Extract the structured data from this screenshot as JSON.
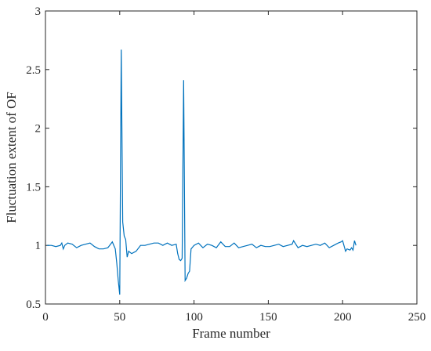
{
  "chart_data": {
    "type": "line",
    "xlabel": "Frame number",
    "ylabel": "Fluctuation extent of OF",
    "x": [
      1,
      4,
      7,
      10,
      11,
      12,
      13,
      15,
      18,
      21,
      24,
      27,
      30,
      33,
      36,
      39,
      42,
      45,
      47,
      48,
      49,
      50,
      51,
      52,
      53,
      54,
      55,
      56,
      58,
      61,
      64,
      67,
      70,
      73,
      76,
      79,
      82,
      85,
      88,
      89,
      90,
      91,
      92,
      93,
      94,
      95,
      96,
      97,
      98,
      100,
      103,
      106,
      109,
      112,
      115,
      118,
      121,
      124,
      127,
      130,
      133,
      136,
      139,
      142,
      145,
      148,
      151,
      154,
      157,
      160,
      163,
      166,
      167,
      170,
      173,
      176,
      179,
      182,
      185,
      188,
      191,
      194,
      197,
      199,
      200,
      202,
      203,
      205,
      206,
      207,
      208,
      209
    ],
    "series": [
      {
        "color": "#0072bd",
        "values": [
          1.0,
          1.0,
          0.99,
          1.0,
          1.02,
          0.97,
          1.0,
          1.02,
          1.01,
          0.98,
          1.0,
          1.01,
          1.02,
          0.99,
          0.97,
          0.97,
          0.98,
          1.03,
          0.97,
          0.85,
          0.7,
          0.58,
          2.67,
          1.2,
          1.08,
          1.05,
          0.9,
          0.95,
          0.93,
          0.95,
          1.0,
          1.0,
          1.01,
          1.02,
          1.02,
          1.0,
          1.02,
          1.0,
          1.01,
          0.93,
          0.88,
          0.87,
          0.89,
          2.41,
          0.7,
          0.72,
          0.76,
          0.78,
          0.97,
          1.0,
          1.02,
          0.98,
          1.01,
          1.0,
          0.98,
          1.03,
          0.99,
          0.99,
          1.02,
          0.98,
          0.99,
          1.0,
          1.01,
          0.98,
          1.0,
          0.99,
          0.99,
          1.0,
          1.01,
          0.99,
          1.0,
          1.01,
          1.04,
          0.98,
          1.0,
          0.99,
          1.0,
          1.01,
          1.0,
          1.02,
          0.98,
          1.0,
          1.02,
          1.03,
          1.04,
          0.95,
          0.97,
          0.96,
          0.98,
          0.96,
          1.04,
          1.0
        ]
      }
    ],
    "xlim": [
      0,
      250
    ],
    "xticks": [
      0,
      50,
      100,
      150,
      200,
      250
    ],
    "ylim": [
      0.5,
      3
    ],
    "yticks": [
      0.5,
      1,
      1.5,
      2,
      2.5,
      3
    ]
  }
}
